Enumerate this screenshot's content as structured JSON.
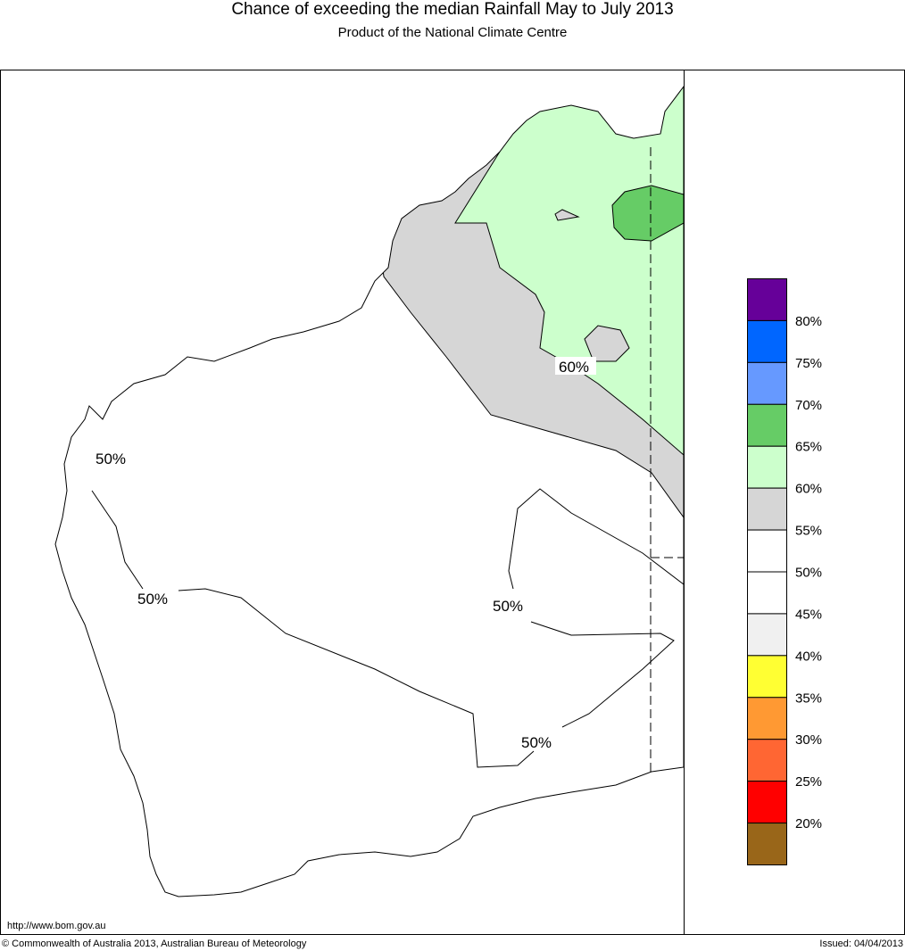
{
  "title": "Chance of exceeding the median Rainfall May to July 2013",
  "subtitle": "Product of the National Climate Centre",
  "legend": {
    "colors": [
      "#660099",
      "#0066ff",
      "#6699ff",
      "#66cc66",
      "#ccffcc",
      "#d6d6d6",
      "#ffffff",
      "#ffffff",
      "#f0f0f0",
      "#ffff33",
      "#ff9933",
      "#ff6633",
      "#ff0000",
      "#996619"
    ],
    "labels": [
      "80%",
      "75%",
      "70%",
      "65%",
      "60%",
      "55%",
      "50%",
      "45%",
      "40%",
      "35%",
      "30%",
      "25%",
      "20%"
    ]
  },
  "map_labels": {
    "l60": "60%",
    "l50a": "50%",
    "l50b": "50%",
    "l50c": "50%",
    "l50d": "50%"
  },
  "region_colors": {
    "land": "#ffffff",
    "p55_60": "#d6d6d6",
    "p60_65": "#ccffcc",
    "p65_70": "#66cc66"
  },
  "footer": {
    "url": "http://www.bom.gov.au",
    "copyright": "© Commonwealth of Australia 2013, Australian Bureau of Meteorology",
    "issued": "Issued: 04/04/2013"
  }
}
